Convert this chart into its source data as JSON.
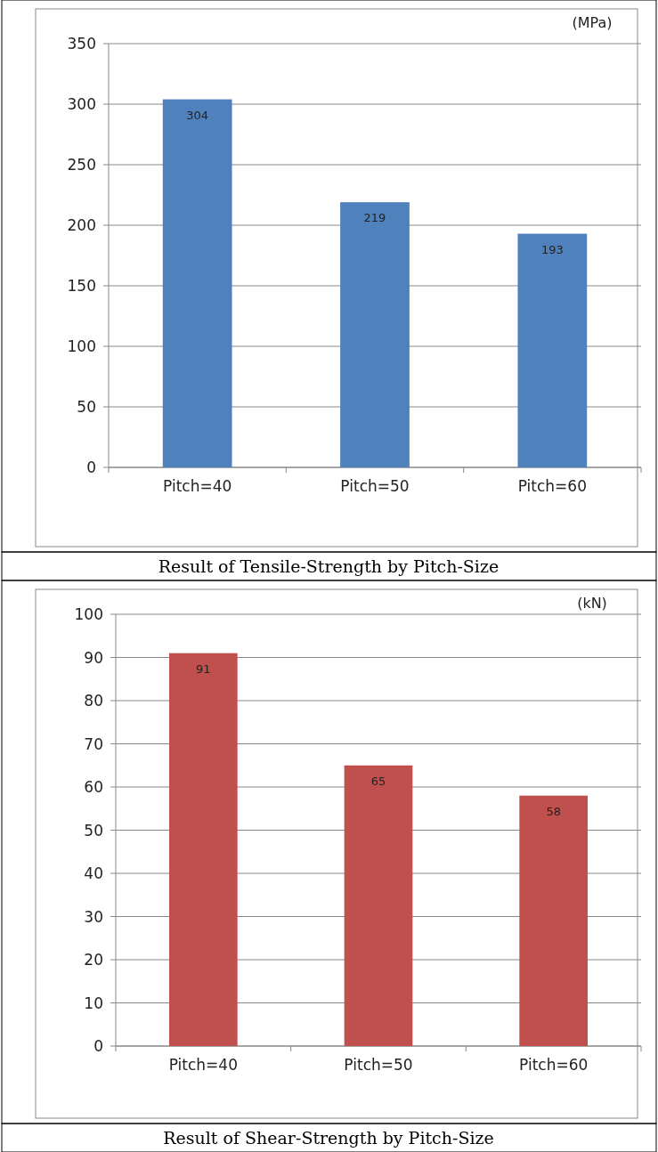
{
  "chart_data": [
    {
      "type": "bar",
      "title": "Result of Tensile-Strength by Pitch-Size",
      "ylabel": "(MPa)",
      "categories": [
        "Pitch=40",
        "Pitch=50",
        "Pitch=60"
      ],
      "values": [
        304,
        219,
        193
      ],
      "color": "#4f81bd",
      "ylim": [
        0,
        350
      ],
      "yticks": [
        0,
        50,
        100,
        150,
        200,
        250,
        300,
        350
      ],
      "grid": "y",
      "data_labels": true
    },
    {
      "type": "bar",
      "title": "Result of Shear-Strength by Pitch-Size",
      "ylabel": "(kN)",
      "categories": [
        "Pitch=40",
        "Pitch=50",
        "Pitch=60"
      ],
      "values": [
        91,
        65,
        58
      ],
      "color": "#c0504d",
      "ylim": [
        0,
        100
      ],
      "yticks": [
        0,
        10,
        20,
        30,
        40,
        50,
        60,
        70,
        80,
        90,
        100
      ],
      "grid": "y",
      "data_labels": true
    }
  ]
}
